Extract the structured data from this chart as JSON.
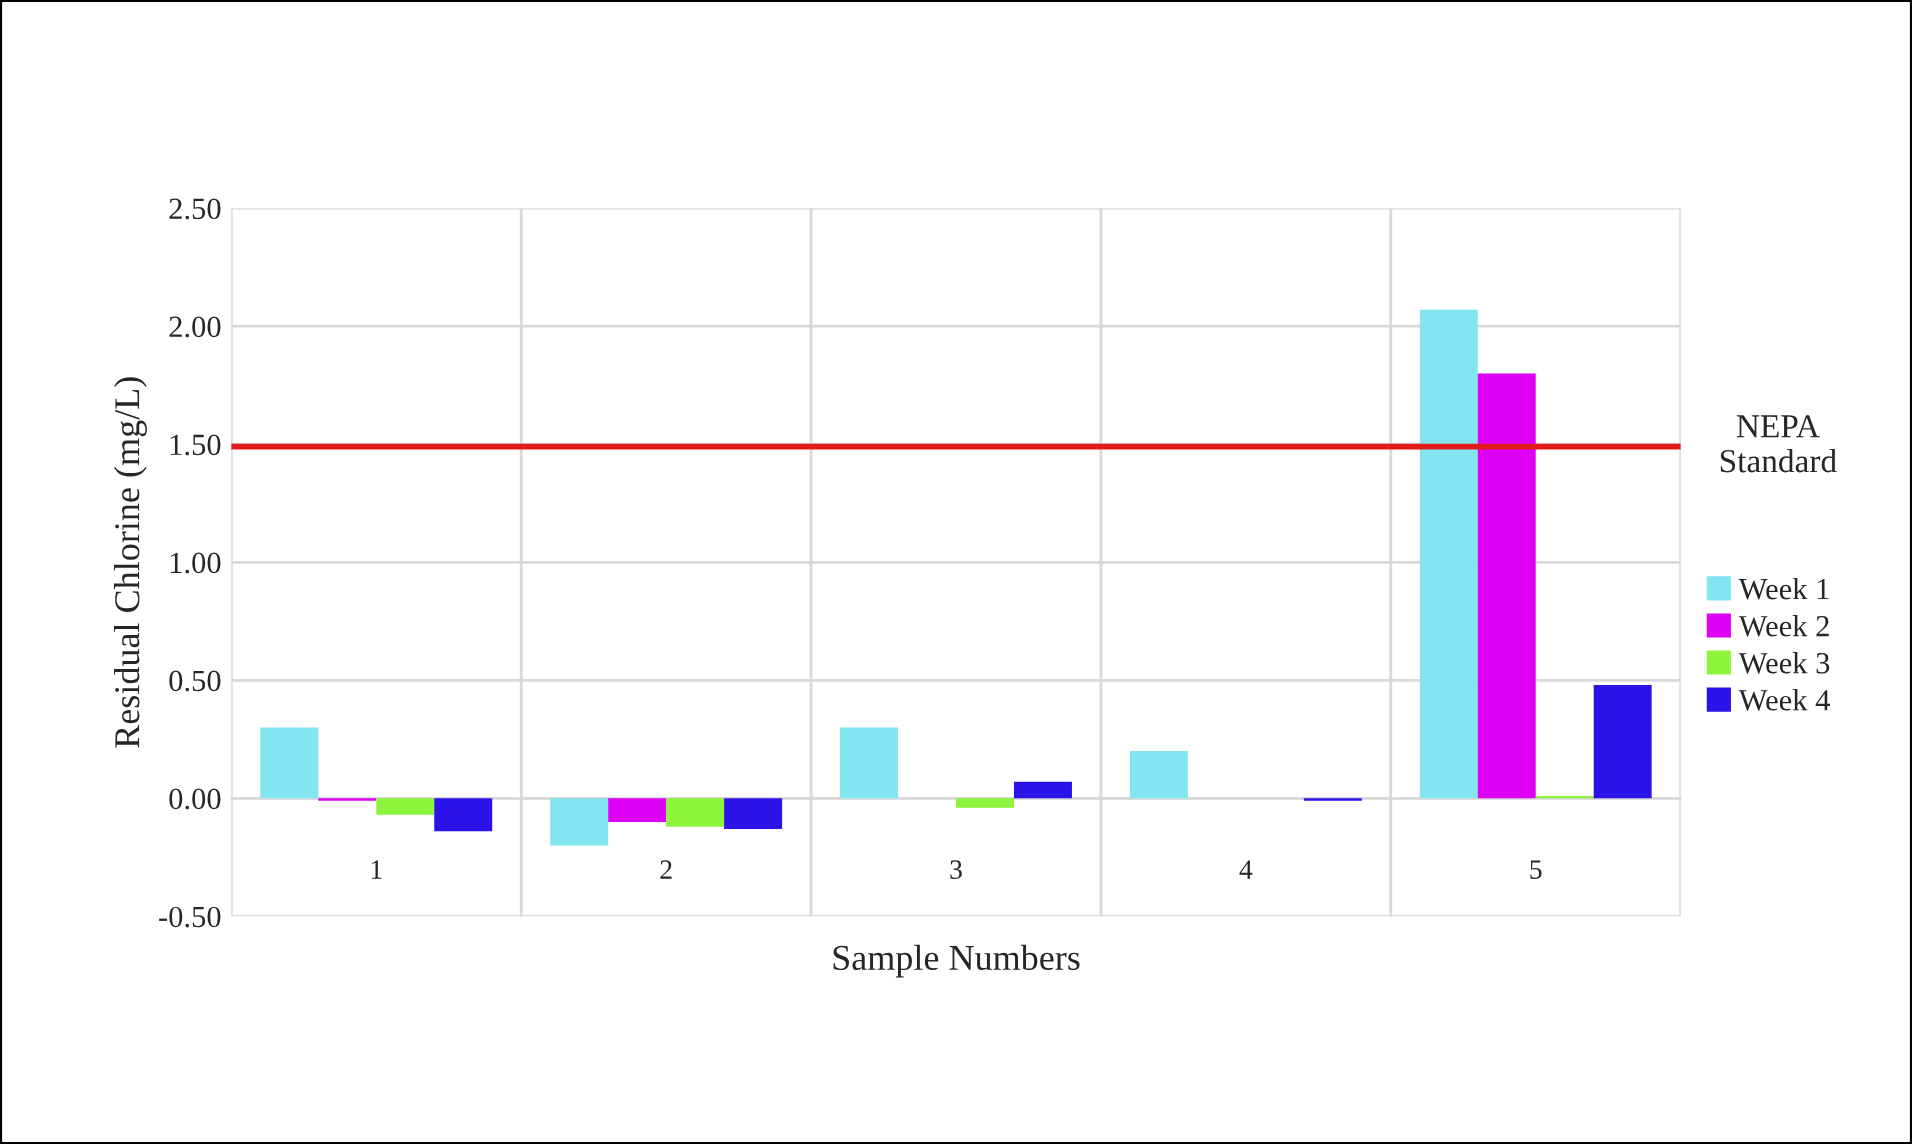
{
  "chart_data": {
    "type": "bar",
    "xlabel": "Sample Numbers",
    "ylabel": "Residual Chlorine (mg/L)",
    "categories": [
      "1",
      "2",
      "3",
      "4",
      "5"
    ],
    "series": [
      {
        "name": "Week 1",
        "color": "#83e5ef",
        "values": [
          0.3,
          -0.2,
          0.3,
          0.2,
          2.07
        ]
      },
      {
        "name": "Week 2",
        "color": "#dd00f5",
        "values": [
          -0.01,
          -0.1,
          null,
          null,
          1.8
        ]
      },
      {
        "name": "Week 3",
        "color": "#8cf53c",
        "values": [
          -0.07,
          -0.12,
          -0.04,
          null,
          0.01
        ]
      },
      {
        "name": "Week 4",
        "color": "#2a12e8",
        "values": [
          -0.14,
          -0.13,
          0.07,
          -0.01,
          0.48
        ]
      }
    ],
    "ylim": [
      -0.5,
      2.5
    ],
    "yticks": [
      {
        "value": -0.5,
        "label": "-0.50"
      },
      {
        "value": 0,
        "label": "0.00"
      },
      {
        "value": 0.5,
        "label": "0.50"
      },
      {
        "value": 1,
        "label": "1.00"
      },
      {
        "value": 1.5,
        "label": "1.50"
      },
      {
        "value": 2,
        "label": "2.00"
      },
      {
        "value": 2.5,
        "label": "2.50"
      }
    ],
    "ref_lines": [
      {
        "axis": "y",
        "value": 1.49,
        "label": "NEPA\nStandard",
        "color": "#e31a1c"
      }
    ],
    "grid": true,
    "legend": "right"
  }
}
